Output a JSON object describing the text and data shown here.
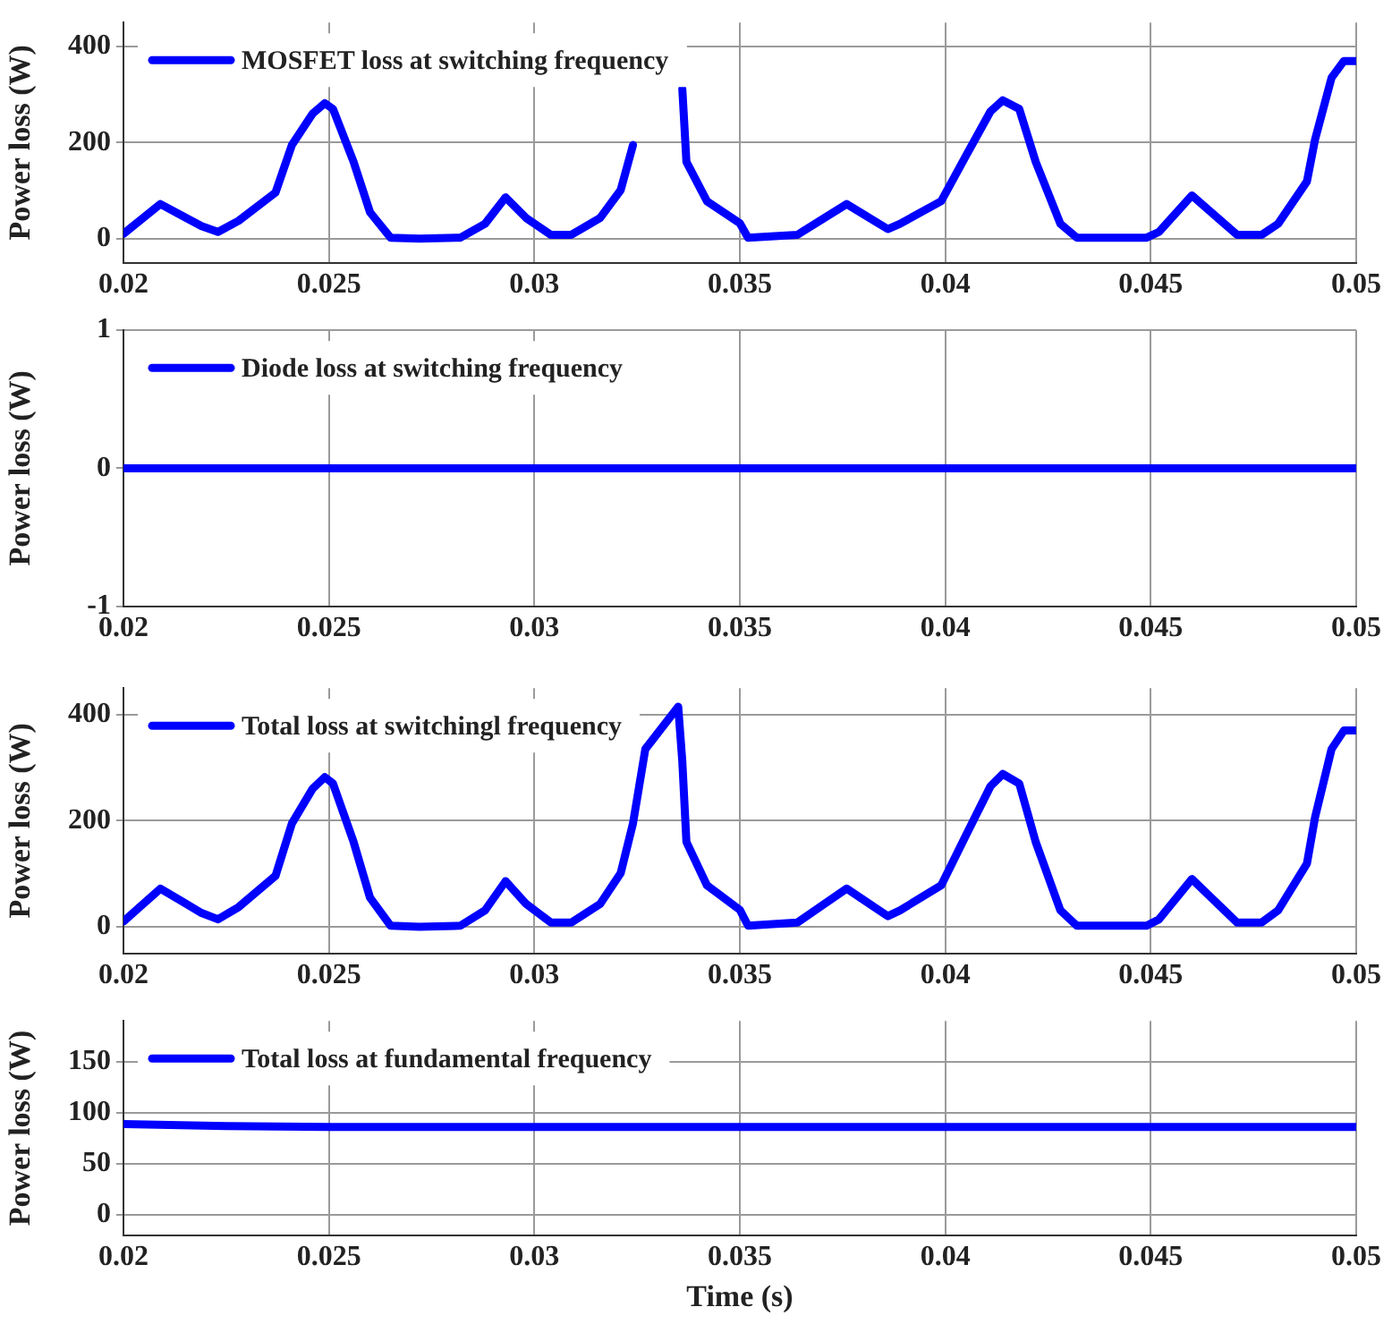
{
  "chart_data": [
    {
      "type": "line",
      "ylabel": "Power loss (W)",
      "xlim": [
        0.02,
        0.05
      ],
      "xticks": [
        0.02,
        0.025,
        0.03,
        0.035,
        0.04,
        0.045,
        0.05
      ],
      "ylim": [
        -50,
        450
      ],
      "yticks": [
        0,
        200,
        400
      ],
      "grid": true,
      "legend": "top left",
      "line_style": "solid",
      "series": [
        {
          "name": "MOSFET loss at switching frequency",
          "color": "#0000ff",
          "x": [
            0.02,
            0.0209,
            0.0214,
            0.0219,
            0.0223,
            0.0228,
            0.0237,
            0.0241,
            0.0246,
            0.0249,
            0.0251,
            0.0256,
            0.026,
            0.0265,
            0.0272,
            0.0282,
            0.0288,
            0.0293,
            0.0298,
            0.0304,
            0.0309,
            0.0316,
            0.0321,
            0.0324,
            0.0327,
            0.0335,
            0.0336,
            0.0337,
            0.0342,
            0.035,
            0.0352,
            0.0364,
            0.0376,
            0.0386,
            0.0389,
            0.0399,
            0.0405,
            0.0411,
            0.0414,
            0.0418,
            0.0422,
            0.0428,
            0.0432,
            0.0449,
            0.0452,
            0.046,
            0.0471,
            0.0477,
            0.0481,
            0.0488,
            0.049,
            0.0494,
            0.0497,
            0.05
          ],
          "values": [
            10,
            72,
            49,
            26,
            14,
            37,
            96,
            195,
            260,
            282,
            270,
            160,
            55,
            2,
            0,
            2,
            31,
            86,
            43,
            8,
            8,
            43,
            101,
            195,
            null,
            null,
            312,
            160,
            78,
            32,
            2,
            8,
            72,
            20,
            31,
            78,
            172,
            265,
            288,
            270,
            160,
            31,
            2,
            2,
            14,
            90,
            8,
            8,
            31,
            119,
            207,
            335,
            370,
            370
          ]
        }
      ]
    },
    {
      "type": "line",
      "ylabel": "Power loss (W)",
      "xlim": [
        0.02,
        0.05
      ],
      "xticks": [
        0.02,
        0.025,
        0.03,
        0.035,
        0.04,
        0.045,
        0.05
      ],
      "ylim": [
        -1,
        1
      ],
      "yticks": [
        -1,
        0,
        1
      ],
      "grid": true,
      "legend": "top left",
      "line_style": "solid",
      "series": [
        {
          "name": "Diode loss at switching frequency",
          "color": "#0000ff",
          "x": [
            0.02,
            0.05
          ],
          "values": [
            0,
            0
          ]
        }
      ]
    },
    {
      "type": "line",
      "ylabel": "Power loss (W)",
      "xlim": [
        0.02,
        0.05
      ],
      "xticks": [
        0.02,
        0.025,
        0.03,
        0.035,
        0.04,
        0.045,
        0.05
      ],
      "ylim": [
        -50,
        450
      ],
      "yticks": [
        0,
        200,
        400
      ],
      "grid": true,
      "legend": "top left",
      "line_style": "solid",
      "series": [
        {
          "name": "Total loss at switchingl frequency",
          "color": "#0000ff",
          "x": [
            0.02,
            0.0209,
            0.0214,
            0.0219,
            0.0223,
            0.0228,
            0.0237,
            0.0241,
            0.0246,
            0.0249,
            0.0251,
            0.0256,
            0.026,
            0.0265,
            0.0272,
            0.0282,
            0.0288,
            0.0293,
            0.0298,
            0.0304,
            0.0309,
            0.0316,
            0.0321,
            0.0324,
            0.0327,
            0.0335,
            0.0336,
            0.0337,
            0.0342,
            0.035,
            0.0352,
            0.0364,
            0.0376,
            0.0386,
            0.0389,
            0.0399,
            0.0405,
            0.0411,
            0.0414,
            0.0418,
            0.0422,
            0.0428,
            0.0432,
            0.0449,
            0.0452,
            0.046,
            0.0471,
            0.0477,
            0.0481,
            0.0488,
            0.049,
            0.0494,
            0.0497,
            0.05
          ],
          "values": [
            10,
            72,
            49,
            26,
            14,
            37,
            96,
            195,
            260,
            282,
            270,
            160,
            55,
            2,
            0,
            2,
            31,
            86,
            43,
            8,
            8,
            43,
            101,
            195,
            335,
            415,
            312,
            160,
            78,
            32,
            2,
            8,
            72,
            20,
            31,
            78,
            172,
            265,
            288,
            270,
            160,
            31,
            2,
            2,
            14,
            90,
            8,
            8,
            31,
            119,
            207,
            335,
            370,
            370
          ]
        }
      ]
    },
    {
      "type": "line",
      "xlabel": "Time (s)",
      "ylabel": "Power loss (W)",
      "xlim": [
        0.02,
        0.05
      ],
      "xticks": [
        0.02,
        0.025,
        0.03,
        0.035,
        0.04,
        0.045,
        0.05
      ],
      "ylim": [
        -20,
        190
      ],
      "yticks": [
        0,
        50,
        100,
        150
      ],
      "grid": true,
      "legend": "top left",
      "line_style": "solid",
      "series": [
        {
          "name": "Total loss at fundamental frequency",
          "color": "#0000ff",
          "x": [
            0.02,
            0.0225,
            0.025,
            0.03,
            0.035,
            0.04,
            0.045,
            0.05
          ],
          "values": [
            89,
            87,
            86,
            86,
            86,
            86,
            86,
            86
          ]
        }
      ]
    }
  ]
}
